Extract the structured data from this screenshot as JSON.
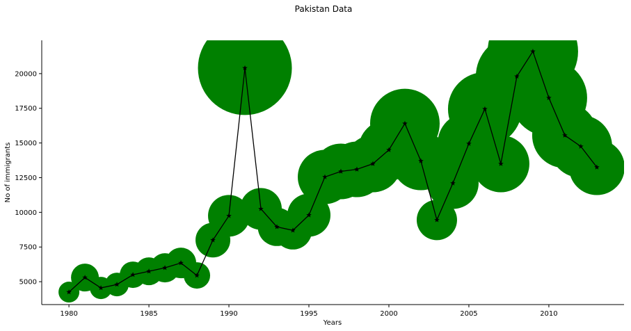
{
  "chart_data": {
    "type": "line",
    "title": "Pakistan Data",
    "xlabel": "Years",
    "ylabel": "No of immigrants",
    "xlim": [
      1978.3,
      2014.7
    ],
    "ylim": [
      3350,
      22400
    ],
    "x_ticks": [
      1980,
      1985,
      1990,
      1995,
      2000,
      2005,
      2010
    ],
    "y_ticks": [
      5000,
      7500,
      10000,
      12500,
      15000,
      17500,
      20000
    ],
    "bubble_color": "#008000",
    "line_color": "#000000",
    "marker": "star",
    "grid": false,
    "series": [
      {
        "x": [
          1980,
          1981,
          1982,
          1983,
          1984,
          1985,
          1986,
          1987,
          1988,
          1989,
          1990,
          1991,
          1992,
          1993,
          1994,
          1995,
          1996,
          1997,
          1998,
          1999,
          2000,
          2001,
          2002,
          2003,
          2004,
          2005,
          2006,
          2007,
          2008,
          2009,
          2010,
          2011,
          2012,
          2013
        ],
        "y": [
          4250,
          5300,
          4550,
          4800,
          5500,
          5750,
          6000,
          6350,
          5450,
          8000,
          9750,
          20400,
          10250,
          8950,
          8700,
          9800,
          12550,
          12950,
          13100,
          13500,
          14500,
          16400,
          13700,
          9450,
          12100,
          14950,
          17450,
          13500,
          19800,
          21600,
          18250,
          15550,
          14750,
          13250
        ],
        "size": [
          30,
          40,
          32,
          34,
          38,
          40,
          42,
          44,
          38,
          50,
          60,
          135,
          60,
          55,
          55,
          62,
          78,
          80,
          80,
          82,
          88,
          100,
          84,
          58,
          74,
          90,
          106,
          82,
          118,
          130,
          110,
          94,
          90,
          80
        ]
      }
    ]
  }
}
